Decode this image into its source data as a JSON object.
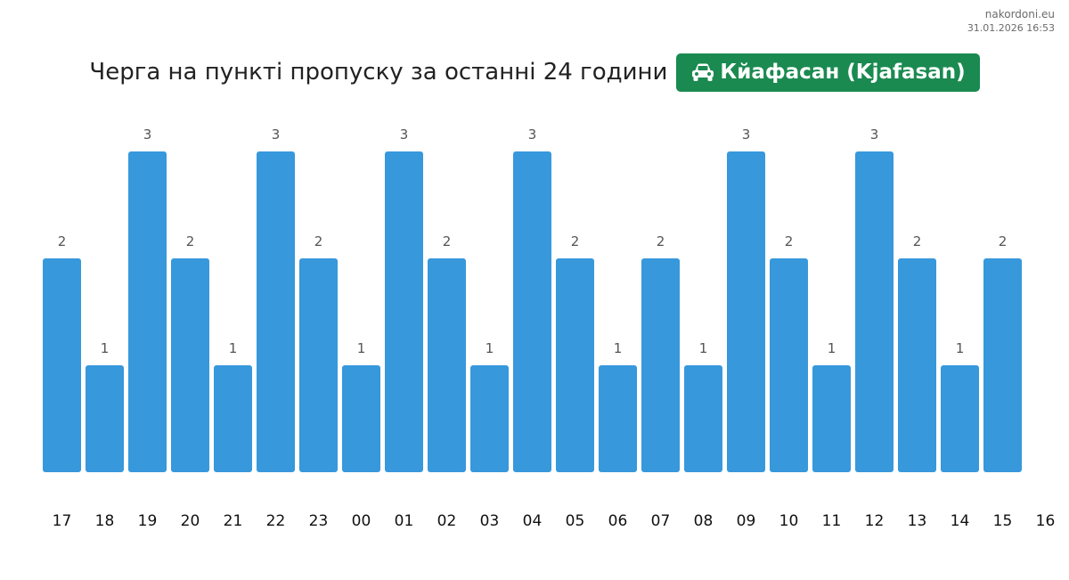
{
  "meta": {
    "site": "nakordoni.eu",
    "timestamp": "31.01.2026 16:53"
  },
  "header": {
    "title": "Черга на пункті пропуску за останні 24 години",
    "badge_label": "Кйафасан (Kjafasan)",
    "badge_icon": "car-icon",
    "badge_color": "#1a8a50"
  },
  "chart_data": {
    "type": "bar",
    "categories": [
      "17",
      "18",
      "19",
      "20",
      "21",
      "22",
      "23",
      "00",
      "01",
      "02",
      "03",
      "04",
      "05",
      "06",
      "07",
      "08",
      "09",
      "10",
      "11",
      "12",
      "13",
      "14",
      "15"
    ],
    "values": [
      2,
      1,
      3,
      2,
      1,
      3,
      2,
      1,
      3,
      2,
      1,
      3,
      2,
      1,
      2,
      1,
      3,
      2,
      1,
      3,
      2,
      1,
      2
    ],
    "x_tick_labels": [
      "17",
      "18",
      "19",
      "20",
      "21",
      "22",
      "23",
      "00",
      "01",
      "02",
      "03",
      "04",
      "05",
      "06",
      "07",
      "08",
      "09",
      "10",
      "11",
      "12",
      "13",
      "14",
      "15",
      "16"
    ],
    "ylim": [
      0,
      3
    ],
    "bar_color": "#3798dc",
    "data_labels": true,
    "grid": false
  }
}
